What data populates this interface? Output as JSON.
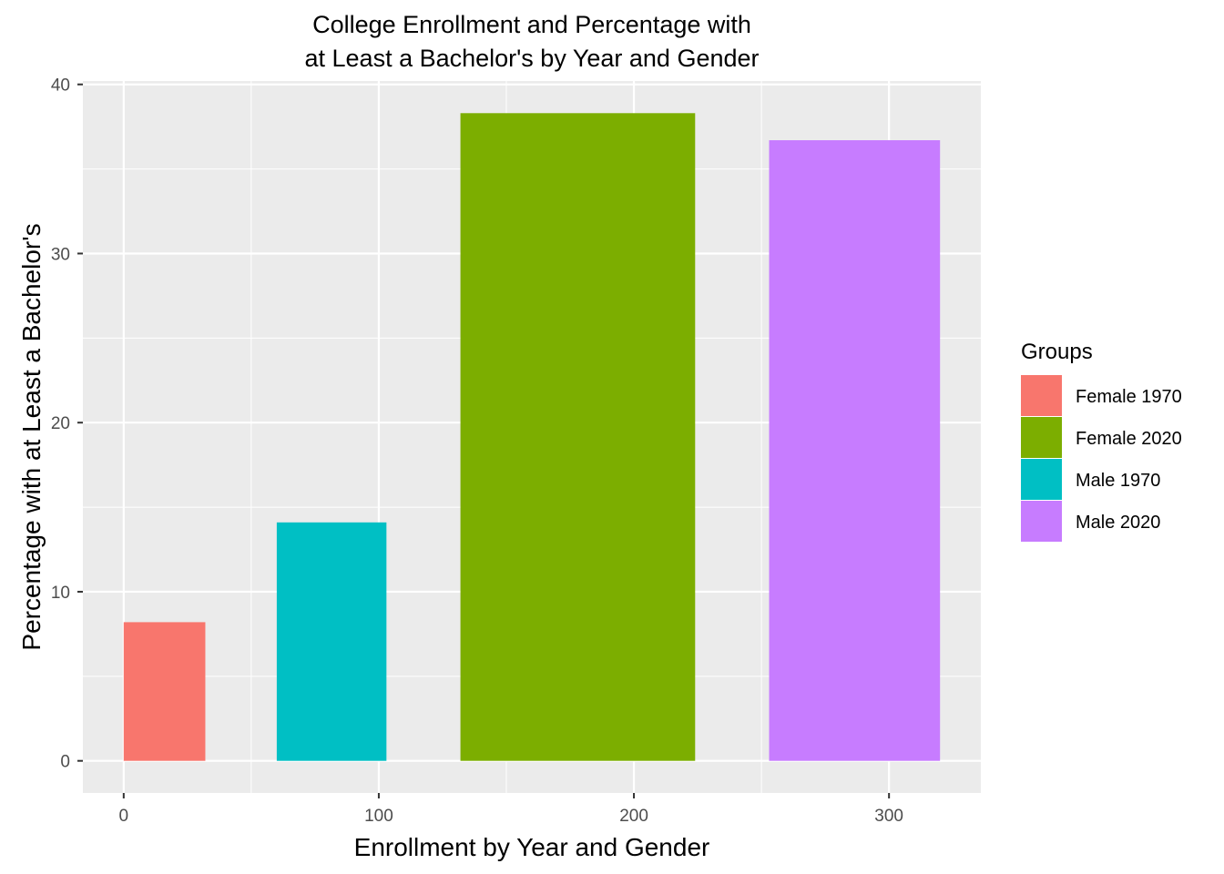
{
  "chart_data": {
    "type": "bar",
    "title": [
      "College Enrollment and Percentage with",
      "at Least a Bachelor's by Year and Gender"
    ],
    "xlabel": "Enrollment by Year and Gender",
    "ylabel": "Percentage with at Least a Bachelor's",
    "xlim": [
      -16,
      336
    ],
    "ylim": [
      -1.9,
      40.2
    ],
    "x_ticks": [
      0,
      100,
      200,
      300
    ],
    "x_tick_labels": [
      "0",
      "100",
      "200",
      "300"
    ],
    "y_ticks": [
      0,
      10,
      20,
      30,
      40
    ],
    "y_tick_labels": [
      "0",
      "10",
      "20",
      "30",
      "40"
    ],
    "grid": true,
    "legend": {
      "title": "Groups",
      "position": "right"
    },
    "series": [
      {
        "name": "Female 1970",
        "x_start": 0,
        "x_end": 32,
        "value": 8.2,
        "color": "#F8766D"
      },
      {
        "name": "Male 1970",
        "x_start": 60,
        "x_end": 103,
        "value": 14.1,
        "color": "#00BFC4"
      },
      {
        "name": "Female 2020",
        "x_start": 132,
        "x_end": 224,
        "value": 38.3,
        "color": "#7CAE00"
      },
      {
        "name": "Male 2020",
        "x_start": 253,
        "x_end": 320,
        "value": 36.7,
        "color": "#C77CFF"
      }
    ],
    "legend_order": [
      "Female 1970",
      "Female 2020",
      "Male 1970",
      "Male 2020"
    ]
  }
}
